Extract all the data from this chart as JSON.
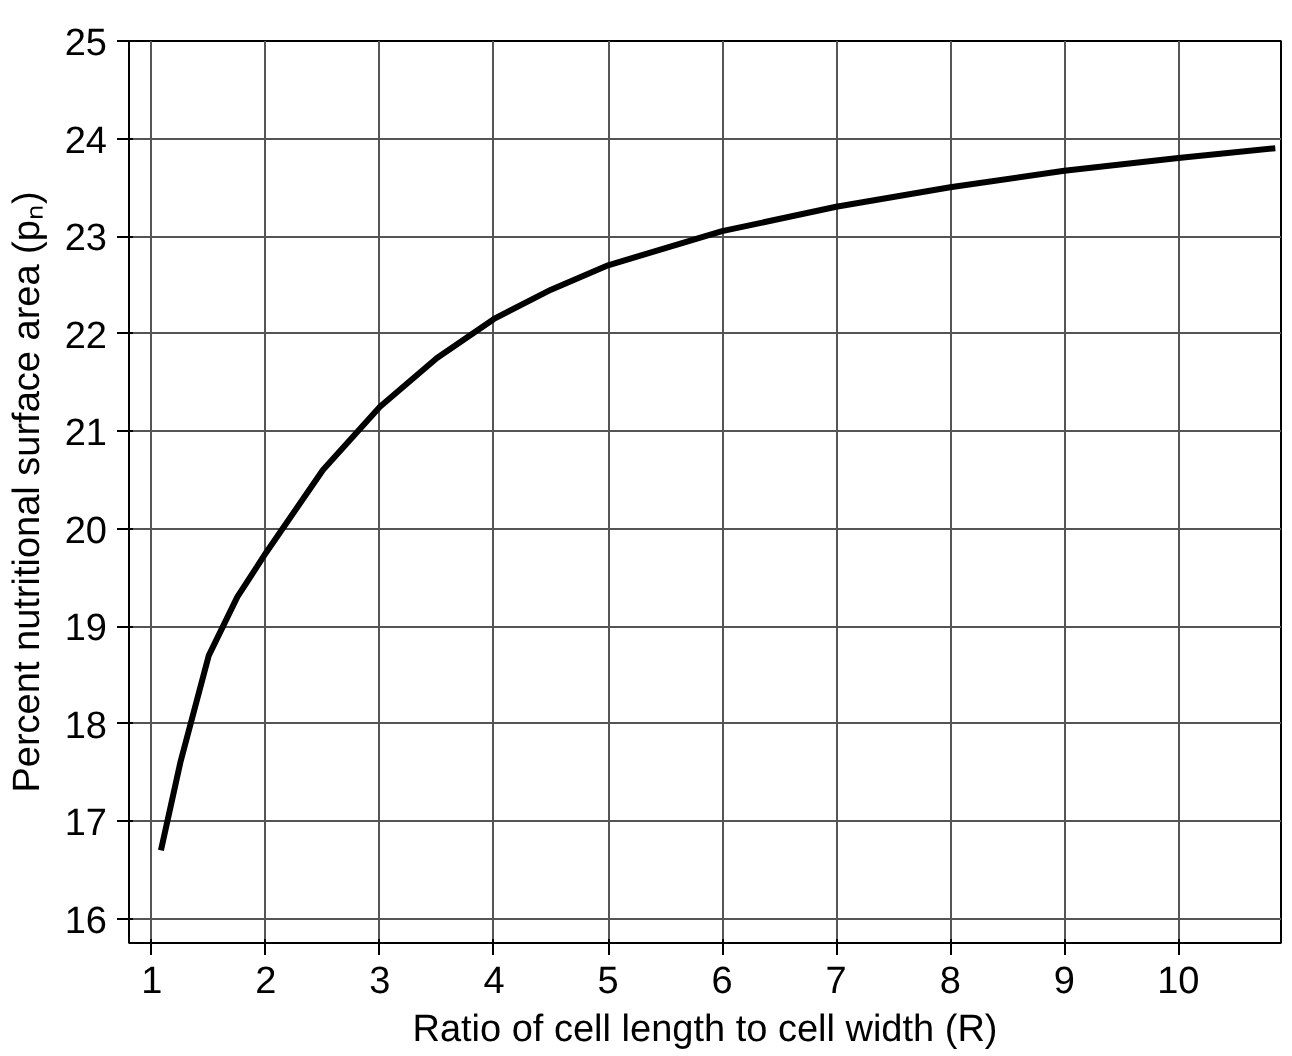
{
  "chart_data": {
    "type": "line",
    "xlabel": "Ratio of cell length to cell width (R)",
    "ylabel": "Percent nutritional surface area (pₙ)",
    "x": [
      1.08,
      1.25,
      1.5,
      1.75,
      2,
      2.5,
      3,
      3.5,
      4,
      4.5,
      5,
      6,
      7,
      8,
      9,
      10,
      10.85
    ],
    "series": [
      {
        "color": "#000000",
        "values": [
          16.7,
          17.6,
          18.7,
          19.3,
          19.75,
          20.6,
          21.25,
          21.75,
          22.15,
          22.45,
          22.7,
          23.05,
          23.3,
          23.5,
          23.67,
          23.8,
          23.9
        ]
      }
    ],
    "xlim": [
      0.8,
      10.9
    ],
    "ylim": [
      15.75,
      25
    ],
    "xticks": [
      1,
      2,
      3,
      4,
      5,
      6,
      7,
      8,
      9,
      10
    ],
    "yticks": [
      16,
      17,
      18,
      19,
      20,
      21,
      22,
      23,
      24,
      25
    ],
    "grid": true,
    "marker": "none",
    "line_style": "solid"
  }
}
